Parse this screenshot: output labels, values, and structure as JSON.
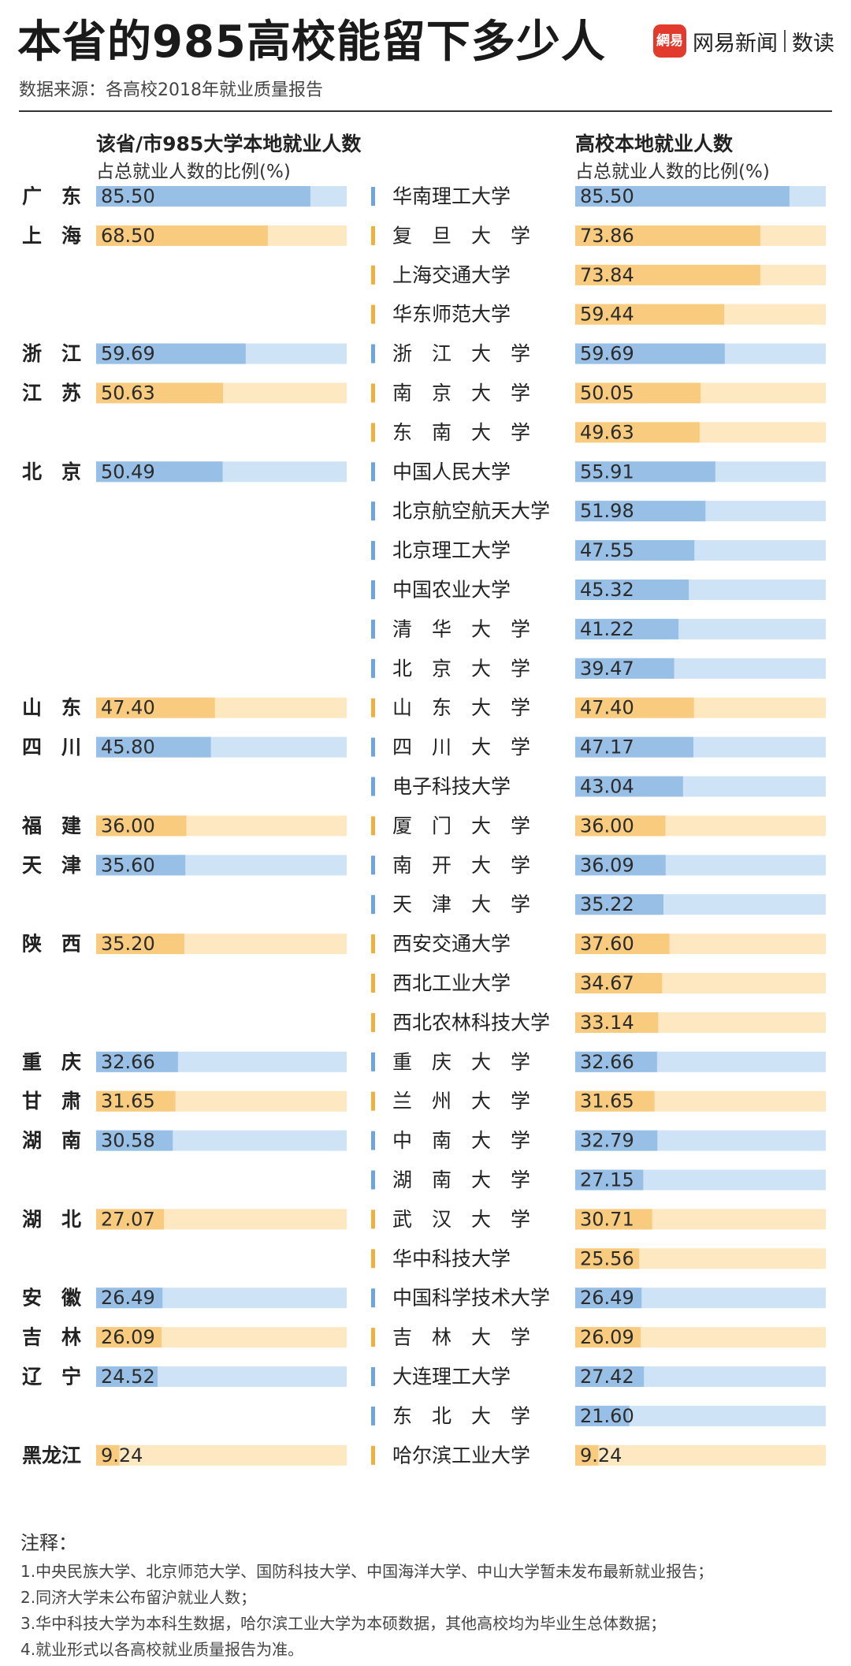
{
  "header": {
    "title": "本省的985高校能留下多少人",
    "source": "数据来源：各高校2018年就业质量报告",
    "logo_mark": "網易",
    "logo_brand": "网易新闻",
    "logo_product": "数读"
  },
  "colors": {
    "blue_fill": "#98bfe6",
    "blue_track": "#cfe3f6",
    "orange_fill": "#f8cb7e",
    "orange_track": "#fde8c2"
  },
  "chart_data": [
    {
      "type": "bar",
      "title": "该省/市985大学本地就业人数",
      "subtitle": "占总就业人数的比例(%)",
      "xlim": [
        0,
        100
      ],
      "categories": [
        "广　东",
        "上　海",
        "浙　江",
        "江　苏",
        "北　京",
        "山　东",
        "四　川",
        "福　建",
        "天　津",
        "陕　西",
        "重　庆",
        "甘　肃",
        "湖　南",
        "湖　北",
        "安　徽",
        "吉　林",
        "辽　宁",
        "黑龙江"
      ],
      "values": [
        85.5,
        68.5,
        59.69,
        50.63,
        50.49,
        47.4,
        45.8,
        36.0,
        35.6,
        35.2,
        32.66,
        31.65,
        30.58,
        27.07,
        26.49,
        26.09,
        24.52,
        9.24
      ],
      "labels": [
        "85.50",
        "68.50",
        "59.69",
        "50.63",
        "50.49",
        "47.40",
        "45.80",
        "36.00",
        "35.60",
        "35.20",
        "32.66",
        "31.65",
        "30.58",
        "27.07",
        "26.49",
        "26.09",
        "24.52",
        "9.24"
      ],
      "row_index": [
        0,
        1,
        4,
        5,
        7,
        13,
        14,
        16,
        17,
        19,
        22,
        23,
        24,
        26,
        28,
        29,
        30,
        32
      ],
      "color_group": [
        "blue",
        "orange",
        "blue",
        "orange",
        "blue",
        "orange",
        "blue",
        "orange",
        "blue",
        "orange",
        "blue",
        "orange",
        "blue",
        "orange",
        "blue",
        "orange",
        "blue",
        "orange"
      ]
    },
    {
      "type": "bar",
      "title": "高校本地就业人数",
      "subtitle": "占总就业人数的比例(%)",
      "xlim": [
        0,
        100
      ],
      "categories": [
        "华南理工大学",
        "复　旦　大　学",
        "上海交通大学",
        "华东师范大学",
        "浙　江　大　学",
        "南　京　大　学",
        "东　南　大　学",
        "中国人民大学",
        "北京航空航天大学",
        "北京理工大学",
        "中国农业大学",
        "清　华　大　学",
        "北　京　大　学",
        "山　东　大　学",
        "四　川　大　学",
        "电子科技大学",
        "厦　门　大　学",
        "南　开　大　学",
        "天　津　大　学",
        "西安交通大学",
        "西北工业大学",
        "西北农林科技大学",
        "重　庆　大　学",
        "兰　州　大　学",
        "中　南　大　学",
        "湖　南　大　学",
        "武　汉　大　学",
        "华中科技大学",
        "中国科学技术大学",
        "吉　林　大　学",
        "大连理工大学",
        "东　北　大　学",
        "哈尔滨工业大学"
      ],
      "values": [
        85.5,
        73.86,
        73.84,
        59.44,
        59.69,
        50.05,
        49.63,
        55.91,
        51.98,
        47.55,
        45.32,
        41.22,
        39.47,
        47.4,
        47.17,
        43.04,
        36.0,
        36.09,
        35.22,
        37.6,
        34.67,
        33.14,
        32.66,
        31.65,
        32.79,
        27.15,
        30.71,
        25.56,
        26.49,
        26.09,
        27.42,
        21.6,
        9.24
      ],
      "labels": [
        "85.50",
        "73.86",
        "73.84",
        "59.44",
        "59.69",
        "50.05",
        "49.63",
        "55.91",
        "51.98",
        "47.55",
        "45.32",
        "41.22",
        "39.47",
        "47.40",
        "47.17",
        "43.04",
        "36.00",
        "36.09",
        "35.22",
        "37.60",
        "34.67",
        "33.14",
        "32.66",
        "31.65",
        "32.79",
        "27.15",
        "30.71",
        "25.56",
        "26.49",
        "26.09",
        "27.42",
        "21.60",
        "9.24"
      ],
      "color_group": [
        "blue",
        "orange",
        "orange",
        "orange",
        "blue",
        "orange",
        "orange",
        "blue",
        "blue",
        "blue",
        "blue",
        "blue",
        "blue",
        "orange",
        "blue",
        "blue",
        "orange",
        "blue",
        "blue",
        "orange",
        "orange",
        "orange",
        "blue",
        "orange",
        "blue",
        "blue",
        "orange",
        "orange",
        "blue",
        "orange",
        "blue",
        "blue",
        "orange"
      ]
    }
  ],
  "notes": {
    "title": "注释：",
    "items": [
      "1.中央民族大学、北京师范大学、国防科技大学、中国海洋大学、中山大学暂未发布最新就业报告；",
      "2.同济大学未公布留沪就业人数；",
      "3.华中科技大学为本科生数据，哈尔滨工业大学为本硕数据，其他高校均为毕业生总体数据；",
      "4.就业形式以各高校就业质量报告为准。"
    ]
  }
}
